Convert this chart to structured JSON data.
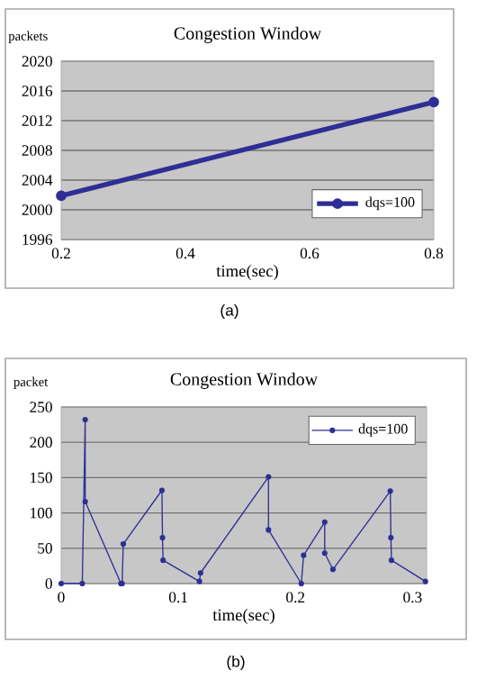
{
  "chart_data": [
    {
      "type": "line",
      "title": "Congestion Window",
      "xlabel": "time(sec)",
      "ylabel": "packets",
      "x": [
        0.2,
        0.8
      ],
      "series": [
        {
          "name": "dqs=100",
          "color": "#2e2e96",
          "values": [
            2001.9,
            2014.5
          ]
        }
      ],
      "xlim": [
        0.2,
        0.8
      ],
      "xticks": [
        0.2,
        0.4,
        0.6,
        0.8
      ],
      "ylim": [
        1996,
        2020
      ],
      "yticks": [
        1996,
        2000,
        2004,
        2008,
        2012,
        2016,
        2020
      ],
      "grid": "y",
      "legend": "bottom right",
      "marker": "circle",
      "annotations": [
        "(a)"
      ]
    },
    {
      "type": "line",
      "title": "Congestion Window",
      "xlabel": "time(sec)",
      "ylabel": "packet",
      "x": [
        0,
        0.018,
        0.0205,
        0.0205,
        0.051,
        0.052,
        0.053,
        0.086,
        0.0865,
        0.087,
        0.118,
        0.119,
        0.177,
        0.177,
        0.205,
        0.207,
        0.225,
        0.225,
        0.232,
        0.281,
        0.2815,
        0.282,
        0.311
      ],
      "series": [
        {
          "name": "dqs=100",
          "color": "#2e2e96",
          "values": [
            0,
            0,
            232,
            116,
            0,
            0,
            56,
            132,
            65,
            33,
            3,
            15,
            151,
            76,
            0,
            40,
            87,
            43,
            20,
            131,
            65,
            33,
            3
          ]
        }
      ],
      "xlim": [
        0,
        0.312
      ],
      "xticks": [
        0,
        0.1,
        0.2,
        0.3
      ],
      "ylim": [
        0,
        250
      ],
      "yticks": [
        0,
        50,
        100,
        150,
        200,
        250
      ],
      "grid": "y",
      "legend": "top right",
      "marker": "circle",
      "annotations": [
        "(b)"
      ]
    }
  ]
}
